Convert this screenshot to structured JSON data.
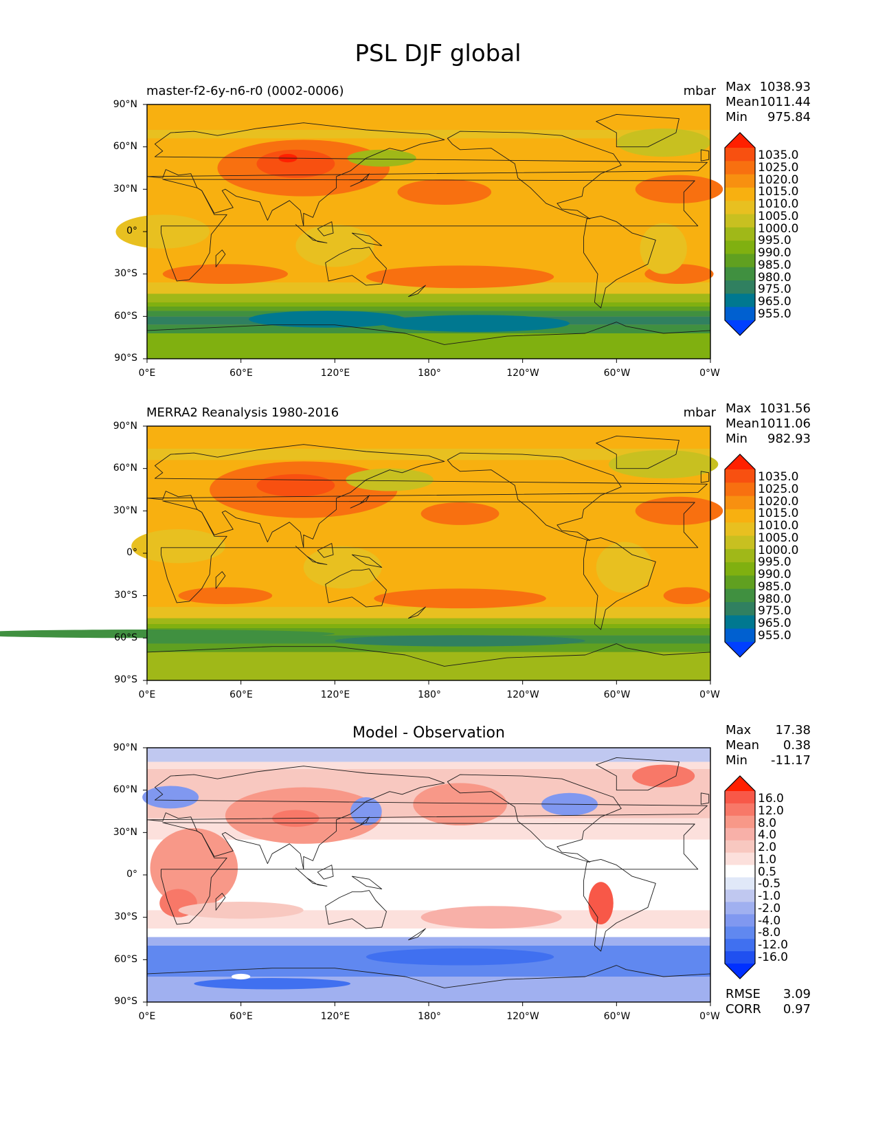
{
  "title": "PSL DJF global",
  "lat_ticks": [
    "90°N",
    "60°N",
    "30°N",
    "0°",
    "30°S",
    "60°S",
    "90°S"
  ],
  "lon_ticks": [
    "0°E",
    "60°E",
    "120°E",
    "180°",
    "120°W",
    "60°W",
    "0°W"
  ],
  "colors": {
    "main": [
      "#0040ff",
      "#0060d0",
      "#007890",
      "#308060",
      "#409040",
      "#60a020",
      "#80b010",
      "#a0b818",
      "#c8c020",
      "#e8c020",
      "#f8b010",
      "#f89010",
      "#f87010",
      "#f85010",
      "#ff2000"
    ],
    "diff": [
      "#0030ff",
      "#2050f0",
      "#4070f0",
      "#6088f0",
      "#8098f0",
      "#a0b0f0",
      "#c0c8f0",
      "#e0e8f8",
      "#ffffff",
      "#fce0dc",
      "#f8c8c0",
      "#f8b0a8",
      "#f89888",
      "#f87868",
      "#f85848",
      "#ff2000"
    ]
  },
  "panels": [
    {
      "id": "model",
      "left_title": "master-f2-6y-n6-r0 (0002-0006)",
      "units": "mbar",
      "stats": [
        {
          "label": "Max",
          "value": "1038.93"
        },
        {
          "label": "Mean",
          "value": "1011.44"
        },
        {
          "label": "Min",
          "value": "975.84"
        }
      ],
      "colorbar_labels": [
        "1035.0",
        "1025.0",
        "1020.0",
        "1015.0",
        "1010.0",
        "1005.0",
        "1000.0",
        "995.0",
        "990.0",
        "985.0",
        "980.0",
        "975.0",
        "965.0",
        "955.0"
      ],
      "chart_data": {
        "type": "heatmap",
        "variable": "PSL",
        "season": "DJF",
        "units": "mbar",
        "xlim": [
          0,
          360
        ],
        "ylim": [
          -90,
          90
        ],
        "levels": [
          955,
          965,
          975,
          980,
          985,
          990,
          995,
          1000,
          1005,
          1010,
          1015,
          1020,
          1025,
          1035
        ],
        "max": 1038.93,
        "mean": 1011.44,
        "min": 975.84
      }
    },
    {
      "id": "obs",
      "left_title": "MERRA2 Reanalysis 1980-2016",
      "units": "mbar",
      "stats": [
        {
          "label": "Max",
          "value": "1031.56"
        },
        {
          "label": "Mean",
          "value": "1011.06"
        },
        {
          "label": "Min",
          "value": "982.93"
        }
      ],
      "colorbar_labels": [
        "1035.0",
        "1025.0",
        "1020.0",
        "1015.0",
        "1010.0",
        "1005.0",
        "1000.0",
        "995.0",
        "990.0",
        "985.0",
        "980.0",
        "975.0",
        "965.0",
        "955.0"
      ],
      "chart_data": {
        "type": "heatmap",
        "variable": "PSL",
        "season": "DJF",
        "units": "mbar",
        "xlim": [
          0,
          360
        ],
        "ylim": [
          -90,
          90
        ],
        "levels": [
          955,
          965,
          975,
          980,
          985,
          990,
          995,
          1000,
          1005,
          1010,
          1015,
          1020,
          1025,
          1035
        ],
        "max": 1031.56,
        "mean": 1011.06,
        "min": 982.93
      }
    },
    {
      "id": "diff",
      "center_title": "Model - Observation",
      "stats": [
        {
          "label": "Max",
          "value": "17.38"
        },
        {
          "label": "Mean",
          "value": "0.38"
        },
        {
          "label": "Min",
          "value": "-11.17"
        }
      ],
      "colorbar_labels": [
        "16.0",
        "12.0",
        "8.0",
        "4.0",
        "2.0",
        "1.0",
        "0.5",
        "-0.5",
        "-1.0",
        "-2.0",
        "-4.0",
        "-8.0",
        "-12.0",
        "-16.0"
      ],
      "extra_stats": [
        {
          "label": "RMSE",
          "value": "3.09"
        },
        {
          "label": "CORR",
          "value": "0.97"
        }
      ],
      "chart_data": {
        "type": "heatmap",
        "xlim": [
          0,
          360
        ],
        "ylim": [
          -90,
          90
        ],
        "levels": [
          -16,
          -12,
          -8,
          -4,
          -2,
          -1,
          -0.5,
          0.5,
          1,
          2,
          4,
          8,
          12,
          16
        ],
        "max": 17.38,
        "mean": 0.38,
        "min": -11.17,
        "rmse": 3.09,
        "corr": 0.97
      }
    }
  ]
}
